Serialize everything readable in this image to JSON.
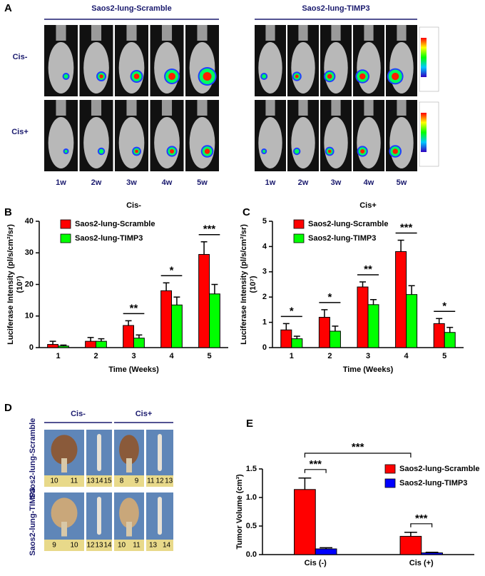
{
  "panel_a": {
    "label": "A",
    "groups": [
      "Saos2-lung-Scramble",
      "Saos2-lung-TIMP3"
    ],
    "rows": [
      "Cis-",
      "Cis+"
    ],
    "weeks": [
      "1w",
      "2w",
      "3w",
      "4w",
      "5w"
    ]
  },
  "chart_data": [
    {
      "type": "bar",
      "panel_label": "B",
      "title": "Cis-",
      "xlabel": "Time (Weeks)",
      "ylabel": "Luciferase Intensity (pl/s/cm²/sr)",
      "ylabel_unit": "(10⁷)",
      "categories": [
        "1",
        "2",
        "3",
        "4",
        "5"
      ],
      "series": [
        {
          "name": "Saos2-lung-Scramble",
          "color": "#ff0000",
          "values": [
            1,
            2,
            7,
            18,
            29.5
          ],
          "errors": [
            1,
            1.2,
            1.5,
            2.5,
            4
          ]
        },
        {
          "name": "Saos2-lung-TIMP3",
          "color": "#00ff00",
          "values": [
            0.5,
            2,
            3,
            13.5,
            17
          ],
          "errors": [
            0.3,
            0.8,
            1,
            2.5,
            3
          ]
        }
      ],
      "ylim": [
        0,
        40
      ],
      "yticks": [
        0,
        10,
        20,
        30,
        40
      ],
      "legend": "upper left",
      "significance": [
        null,
        null,
        "**",
        "*",
        "***"
      ]
    },
    {
      "type": "bar",
      "panel_label": "C",
      "title": "Cis+",
      "xlabel": "Time (Weeks)",
      "ylabel": "Luciferase Intensity (pl/s/cm²/sr)",
      "ylabel_unit": "(10⁷)",
      "categories": [
        "1",
        "2",
        "3",
        "4",
        "5"
      ],
      "series": [
        {
          "name": "Saos2-lung-Scramble",
          "color": "#ff0000",
          "values": [
            0.7,
            1.2,
            2.4,
            3.8,
            0.95
          ],
          "errors": [
            0.25,
            0.3,
            0.2,
            0.45,
            0.2
          ]
        },
        {
          "name": "Saos2-lung-TIMP3",
          "color": "#00ff00",
          "values": [
            0.35,
            0.65,
            1.7,
            2.1,
            0.6
          ],
          "errors": [
            0.1,
            0.2,
            0.2,
            0.35,
            0.2
          ]
        }
      ],
      "ylim": [
        0,
        5
      ],
      "yticks": [
        0,
        1,
        2,
        3,
        4,
        5
      ],
      "legend": "upper left",
      "significance": [
        "*",
        "*",
        "**",
        "***",
        "*"
      ]
    },
    {
      "type": "bar",
      "panel_label": "E",
      "ylabel": "Tumor Volume (cm³)",
      "categories": [
        "Cis (-)",
        "Cis (+)"
      ],
      "series": [
        {
          "name": "Saos2-lung-Scramble",
          "color": "#ff0000",
          "values": [
            1.14,
            0.32
          ],
          "errors": [
            0.2,
            0.07
          ]
        },
        {
          "name": "Saos2-lung-TIMP3",
          "color": "#0000ff",
          "values": [
            0.1,
            0.03
          ],
          "errors": [
            0.02,
            0.01
          ]
        }
      ],
      "ylim": [
        0,
        1.5
      ],
      "yticks": [
        {
          "value": 0,
          "label": "0.0"
        },
        0.5,
        {
          "value": 1,
          "label": "1.0"
        },
        1.5
      ],
      "legend": "upper right",
      "significance": [
        "***",
        "***"
      ],
      "between_significance": "***"
    }
  ],
  "panel_d": {
    "label": "D",
    "columns": [
      "Cis-",
      "Cis+"
    ],
    "rows": [
      "Saos2-lung-Scramble",
      "Saos2-lung-TIMP3"
    ],
    "rulers": [
      [
        [
          "10",
          "11"
        ],
        [
          "13",
          "14",
          "15"
        ],
        [
          "8",
          "9"
        ],
        [
          "11",
          "12",
          "13"
        ]
      ],
      [
        [
          "9",
          "10"
        ],
        [
          "12",
          "13",
          "14"
        ],
        [
          "10",
          "11"
        ],
        [
          "13",
          "14"
        ]
      ]
    ]
  }
}
